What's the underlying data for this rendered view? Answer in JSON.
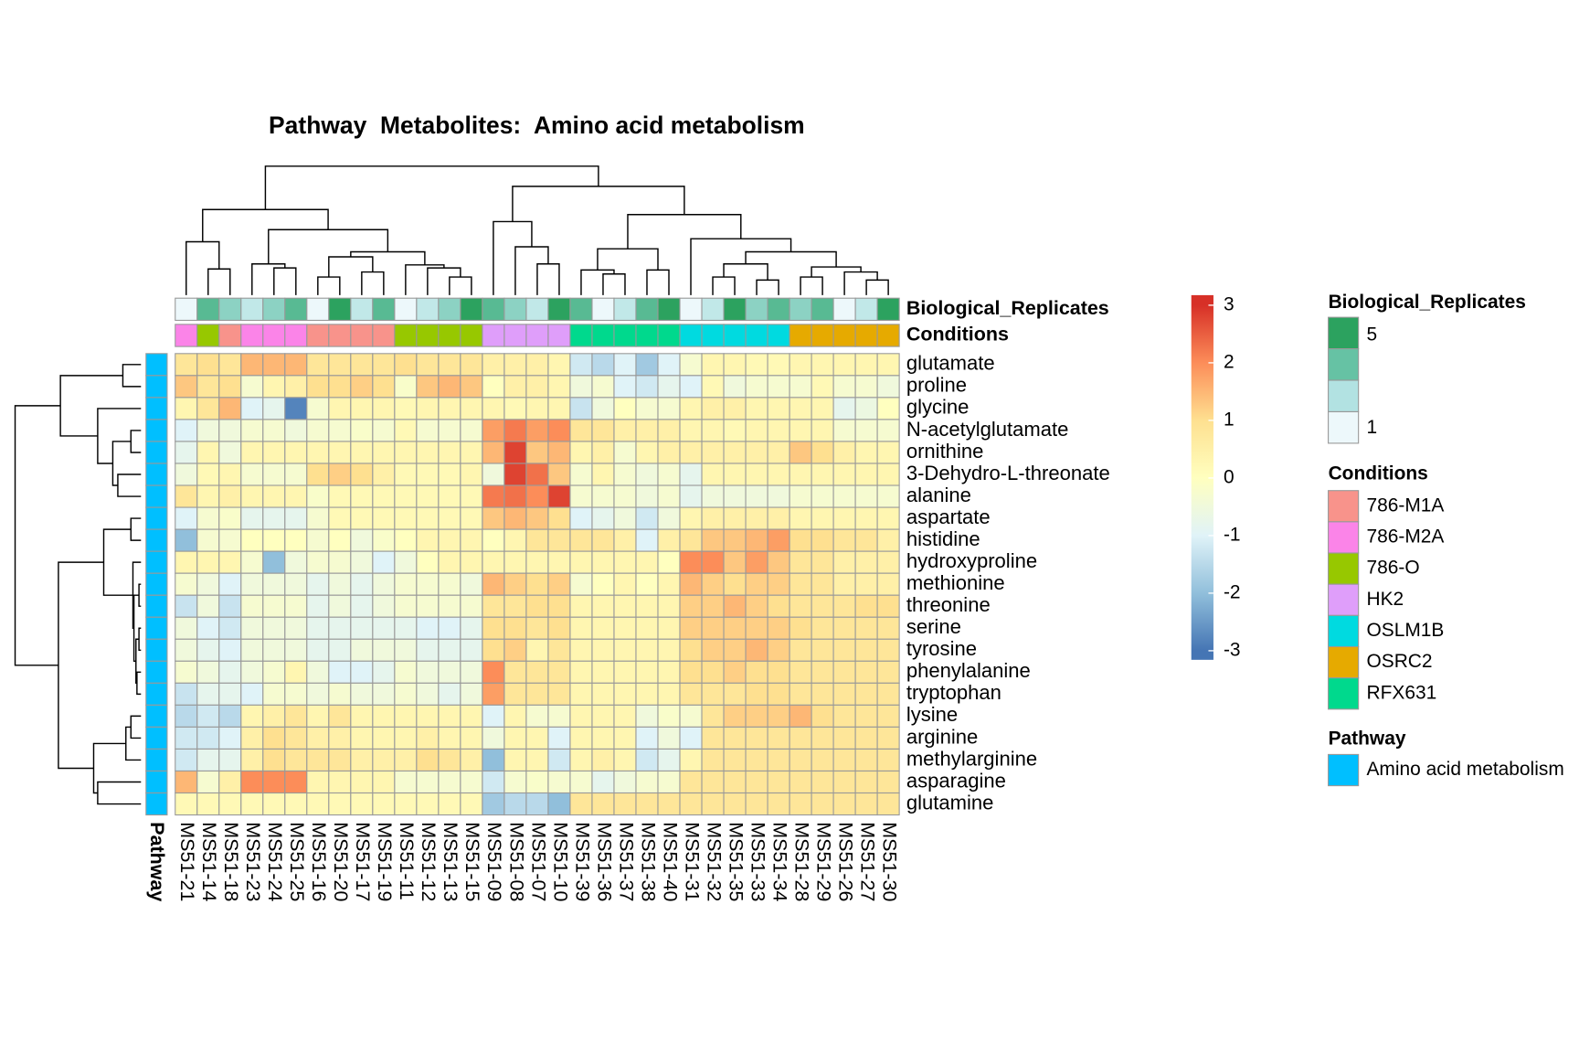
{
  "chart_data": {
    "type": "heatmap",
    "title": "Pathway  Metabolites:  Amino acid metabolism",
    "columns": [
      "MS51-21",
      "MS51-14",
      "MS51-18",
      "MS51-23",
      "MS51-24",
      "MS51-25",
      "MS51-16",
      "MS51-20",
      "MS51-17",
      "MS51-19",
      "MS51-11",
      "MS51-12",
      "MS51-13",
      "MS51-15",
      "MS51-09",
      "MS51-08",
      "MS51-07",
      "MS51-10",
      "MS51-39",
      "MS51-36",
      "MS51-37",
      "MS51-38",
      "MS51-40",
      "MS51-31",
      "MS51-32",
      "MS51-35",
      "MS51-33",
      "MS51-34",
      "MS51-28",
      "MS51-29",
      "MS51-26",
      "MS51-27",
      "MS51-30"
    ],
    "rows": [
      "glutamate",
      "proline",
      "glycine",
      "N-acetylglutamate",
      "ornithine",
      "3-Dehydro-L-threonate",
      "alanine",
      "aspartate",
      "histidine",
      "hydroxyproline",
      "methionine",
      "threonine",
      "serine",
      "tyrosine",
      "phenylalanine",
      "tryptophan",
      "lysine",
      "arginine",
      "methylarginine",
      "asparagine",
      "glutamine"
    ],
    "values": [
      [
        0.8,
        1,
        0.8,
        1.5,
        1.5,
        1.5,
        0.8,
        0.8,
        0.8,
        0.8,
        1,
        0.8,
        0.8,
        0.8,
        0.5,
        0.5,
        0.5,
        0.3,
        -1.2,
        -1.5,
        -1,
        -1.8,
        -1,
        -0.3,
        0.3,
        0.3,
        0.2,
        0.2,
        0.3,
        0.3,
        0.3,
        0.3,
        0.3
      ],
      [
        1.3,
        0.8,
        1,
        -0.3,
        0.3,
        0.5,
        1,
        1,
        1.2,
        1,
        -0.2,
        1.3,
        1.5,
        1.3,
        0,
        0.5,
        0.5,
        0.3,
        -0.5,
        -0.3,
        -1,
        -1.2,
        -0.8,
        -1,
        0.2,
        -0.5,
        -0.3,
        -0.3,
        -0.3,
        0.2,
        -0.3,
        -0.3,
        -0.5
      ],
      [
        0.3,
        0.8,
        1.5,
        -1,
        -0.8,
        -2.8,
        -0.3,
        0.3,
        0.3,
        0.3,
        0.2,
        0.3,
        0.3,
        0.3,
        0.3,
        0.2,
        0.3,
        0.3,
        -1.3,
        -0.5,
        0,
        -0.3,
        -0.3,
        0.3,
        0.5,
        0.5,
        0.3,
        0.3,
        0.3,
        0.3,
        -0.8,
        -0.6,
        0
      ],
      [
        -1,
        -0.5,
        -0.5,
        -0.3,
        -0.3,
        -0.5,
        -0.3,
        -0.3,
        -0.2,
        -0.3,
        0.2,
        -0.3,
        -0.3,
        -0.3,
        1.8,
        2.2,
        1.8,
        2,
        0.8,
        0.8,
        0.5,
        0.5,
        0.5,
        0.3,
        0.3,
        0.2,
        0.3,
        0.3,
        0.3,
        0.3,
        -0.3,
        -0.3,
        -0.3
      ],
      [
        -0.8,
        0.3,
        -0.5,
        0.3,
        0.3,
        0.3,
        0.3,
        0.3,
        0.3,
        0.3,
        0.3,
        0.3,
        0.3,
        0.3,
        1.5,
        2.8,
        1.3,
        1.5,
        0.3,
        0.5,
        -0.3,
        0.3,
        0.5,
        0.5,
        0.5,
        0.5,
        0.5,
        0.5,
        1.3,
        1,
        0.5,
        0.3,
        0.3
      ],
      [
        -0.5,
        0.2,
        0.3,
        -0.3,
        -0.3,
        -0.3,
        1,
        1.2,
        1,
        0.5,
        0.2,
        0.2,
        0.2,
        0.3,
        -0.5,
        2.8,
        2.3,
        1.3,
        -0.3,
        0.3,
        -0.3,
        -0.5,
        -0.3,
        -0.8,
        0.3,
        0.3,
        0.3,
        0.3,
        0.3,
        0.3,
        0.3,
        0.3,
        0.3
      ],
      [
        0.8,
        0.3,
        0.5,
        0.3,
        0.3,
        0.3,
        -0.2,
        0.2,
        0.2,
        0.2,
        0.2,
        0.2,
        0.2,
        0.2,
        2.2,
        2.3,
        2,
        2.8,
        -0.3,
        -0.3,
        -0.3,
        -0.5,
        -0.3,
        -0.8,
        -0.5,
        -0.5,
        -0.5,
        -0.5,
        -0.3,
        -0.3,
        -0.3,
        -0.3,
        -0.3
      ],
      [
        -1,
        -0.3,
        -0.2,
        -0.8,
        -0.8,
        -0.8,
        -0.3,
        0.2,
        0.2,
        0.2,
        0.2,
        0.2,
        0.2,
        0.2,
        1.3,
        1.5,
        1.3,
        1,
        -1,
        -0.8,
        -0.5,
        -1.2,
        -0.5,
        0.3,
        0.5,
        0.5,
        0.5,
        0.5,
        0.3,
        0.3,
        0.3,
        0.3,
        0.3
      ],
      [
        -2,
        -0.3,
        -0.3,
        0,
        0,
        0,
        -0.3,
        0,
        -0.5,
        -0.2,
        0,
        0.3,
        0.3,
        0.3,
        0,
        0.3,
        0.8,
        0.8,
        0.8,
        0.8,
        0.5,
        -1,
        0.5,
        0.8,
        1.3,
        1.3,
        1.5,
        1.8,
        1,
        1,
        0.8,
        0.8,
        0.5
      ],
      [
        0.3,
        0.3,
        0.3,
        -0.3,
        -2,
        -0.5,
        -0.3,
        -0.3,
        -0.5,
        -1,
        -0.5,
        0,
        0.3,
        0.3,
        0.3,
        0.3,
        0.3,
        0.3,
        0.3,
        0.3,
        0.3,
        0.3,
        0,
        2,
        2,
        1.3,
        1.8,
        1.3,
        0.8,
        0.8,
        0.5,
        0.5,
        0.5
      ],
      [
        -0.3,
        -0.5,
        -1,
        -0.5,
        -0.5,
        -0.5,
        -0.8,
        -0.5,
        -0.8,
        -0.5,
        -0.3,
        -0.3,
        -0.3,
        -0.5,
        1.5,
        1.2,
        1,
        1.2,
        -0.3,
        0,
        0.3,
        0,
        0.3,
        1.5,
        1.2,
        1,
        1.2,
        1.2,
        0.8,
        0.8,
        0.5,
        0.5,
        0.5
      ],
      [
        -1.3,
        -0.5,
        -1.3,
        -0.3,
        -0.3,
        -0.3,
        -0.8,
        -0.5,
        -0.8,
        -0.5,
        -0.3,
        -0.3,
        -0.3,
        -0.3,
        0.8,
        0.8,
        1,
        1,
        0.3,
        0.3,
        0.3,
        0.3,
        0.3,
        1.2,
        1.2,
        1.5,
        1.2,
        1,
        0.8,
        0.8,
        0.8,
        1,
        1
      ],
      [
        -0.5,
        -1,
        -1.2,
        -0.5,
        -0.5,
        -0.5,
        -0.8,
        -0.8,
        -0.8,
        -0.8,
        -0.8,
        -1,
        -1,
        -0.8,
        1,
        1,
        0.8,
        1,
        0.3,
        0.3,
        0.3,
        0.3,
        0.3,
        1.2,
        1.2,
        1.2,
        1.2,
        1.2,
        1,
        0.8,
        0.8,
        0.8,
        0.8
      ],
      [
        -0.5,
        -0.8,
        -1,
        -0.5,
        -0.5,
        -0.5,
        -0.8,
        -0.8,
        -0.5,
        -0.5,
        -0.5,
        -0.8,
        -0.8,
        -0.8,
        1,
        1.2,
        0.3,
        0.8,
        0.3,
        0.3,
        0.3,
        0.3,
        0.3,
        1,
        1.2,
        1.2,
        1.5,
        1.2,
        0.8,
        0.8,
        0.8,
        0.8,
        0.8
      ],
      [
        -0.3,
        -0.5,
        -0.8,
        -0.5,
        -0.3,
        0.3,
        -0.5,
        -1,
        -1,
        -0.8,
        -0.3,
        -0.5,
        -0.5,
        -0.5,
        2,
        0.8,
        0.8,
        0.8,
        0.3,
        0.3,
        0.3,
        0.3,
        0.3,
        1,
        1,
        1.2,
        1,
        1,
        0.8,
        0.8,
        0.8,
        0.8,
        0.8
      ],
      [
        -1.3,
        -0.8,
        -0.8,
        -1,
        -0.3,
        -0.3,
        -0.5,
        -0.3,
        -0.5,
        -0.5,
        -0.3,
        -0.5,
        -0.8,
        -0.5,
        1.8,
        0.8,
        0.8,
        0.8,
        0.3,
        0.3,
        0.3,
        0.3,
        0.3,
        0.8,
        0.8,
        0.8,
        1,
        1,
        0.8,
        0.8,
        0.8,
        0.8,
        0.8
      ],
      [
        -1.5,
        -1.2,
        -1.5,
        0.3,
        0.5,
        0.8,
        0.3,
        0.8,
        0.3,
        0.3,
        0.3,
        0.3,
        0.3,
        0.3,
        -1,
        0.3,
        -0.3,
        -0.3,
        0.3,
        0.3,
        0.3,
        -0.5,
        -0.2,
        -0.3,
        0.8,
        1.2,
        1.2,
        1.2,
        1.5,
        1,
        0.8,
        0.8,
        0.8
      ],
      [
        -1.2,
        -1.2,
        -1,
        0.5,
        1,
        0.8,
        0.5,
        0.5,
        0.3,
        0.3,
        0.3,
        0.5,
        0.3,
        0.3,
        -0.5,
        0.3,
        0.3,
        -1,
        0.3,
        0.3,
        0.3,
        -1,
        -0.5,
        -1,
        0.8,
        0.8,
        0.8,
        0.8,
        0.8,
        0.8,
        0.8,
        0.8,
        0.8
      ],
      [
        -1.2,
        -0.8,
        -0.8,
        0.5,
        1,
        0.8,
        0.8,
        0.8,
        0.5,
        0.5,
        0.5,
        1,
        0.8,
        0.5,
        -2,
        0.3,
        0.3,
        -1.2,
        0.3,
        0.5,
        0.3,
        -1.2,
        -0.8,
        0.3,
        0.8,
        0.8,
        0.8,
        0.8,
        0.8,
        0.8,
        0.8,
        0.8,
        0.8
      ],
      [
        1.5,
        -0.3,
        0.5,
        2,
        2,
        2,
        0.3,
        0.3,
        0.3,
        0.3,
        -0.3,
        -0.3,
        -0.3,
        -0.3,
        -1.2,
        -0.3,
        -0.2,
        -0.3,
        -0.3,
        -0.8,
        -0.5,
        -0.3,
        -0.3,
        0.8,
        0.8,
        0.8,
        0.8,
        0.8,
        0.8,
        0.8,
        0.8,
        0.8,
        0.8
      ],
      [
        0.2,
        0.2,
        0.2,
        0.2,
        0.2,
        0.2,
        0.2,
        0.2,
        0.2,
        0.2,
        0.2,
        0.2,
        0.2,
        0.2,
        -1.8,
        -1.5,
        -1.5,
        -2,
        0.8,
        0.8,
        0.8,
        0.8,
        0.8,
        0.8,
        0.8,
        0.8,
        0.8,
        0.8,
        0.8,
        0.8,
        0.8,
        0.8,
        0.8
      ]
    ],
    "zlim": [
      -3,
      3
    ],
    "zticks": [
      -3,
      -2,
      -1,
      0,
      1,
      2,
      3
    ],
    "colors": [
      "#4575B4",
      "#91BFDB",
      "#E0F3F8",
      "#FFFFBF",
      "#FEE090",
      "#FC8D59",
      "#D73027"
    ],
    "annotations": {
      "column": [
        {
          "name": "Biological_Replicates",
          "values": [
            1,
            4,
            3,
            2,
            3,
            4,
            1,
            5,
            2,
            4,
            1,
            2,
            3,
            5,
            4,
            3,
            2,
            5,
            4,
            1,
            2,
            4,
            5,
            1,
            2,
            5,
            3,
            4,
            3,
            4,
            1,
            2,
            5
          ],
          "colors": [
            "#EDF8FB",
            "#B2E2E2",
            "#66C2A4",
            "#2CA25F"
          ],
          "legend_ticks": [
            1,
            5
          ]
        },
        {
          "name": "Conditions",
          "values": [
            "786-M2A",
            "786-O",
            "786-M1A",
            "786-M2A",
            "786-M2A",
            "786-M2A",
            "786-M1A",
            "786-M1A",
            "786-M1A",
            "786-M1A",
            "786-O",
            "786-O",
            "786-O",
            "786-O",
            "HK2",
            "HK2",
            "HK2",
            "HK2",
            "RFX631",
            "RFX631",
            "RFX631",
            "RFX631",
            "RFX631",
            "OSLM1B",
            "OSLM1B",
            "OSLM1B",
            "OSLM1B",
            "OSLM1B",
            "OSRC2",
            "OSRC2",
            "OSRC2",
            "OSRC2",
            "OSRC2"
          ],
          "levels": [
            "786-M1A",
            "786-M2A",
            "786-O",
            "HK2",
            "OSLM1B",
            "OSRC2",
            "RFX631"
          ],
          "colors": [
            "#F8938B",
            "#FB84E8",
            "#97C800",
            "#DF9EFA",
            "#00DAE0",
            "#E6AA00",
            "#00D98D"
          ]
        }
      ],
      "row": [
        {
          "name": "Pathway",
          "values": [
            "Amino acid metabolism",
            "Amino acid metabolism",
            "Amino acid metabolism",
            "Amino acid metabolism",
            "Amino acid metabolism",
            "Amino acid metabolism",
            "Amino acid metabolism",
            "Amino acid metabolism",
            "Amino acid metabolism",
            "Amino acid metabolism",
            "Amino acid metabolism",
            "Amino acid metabolism",
            "Amino acid metabolism",
            "Amino acid metabolism",
            "Amino acid metabolism",
            "Amino acid metabolism",
            "Amino acid metabolism",
            "Amino acid metabolism",
            "Amino acid metabolism",
            "Amino acid metabolism",
            "Amino acid metabolism"
          ],
          "levels": [
            "Amino acid metabolism"
          ],
          "colors": [
            "#00BFFF"
          ]
        }
      ]
    }
  }
}
